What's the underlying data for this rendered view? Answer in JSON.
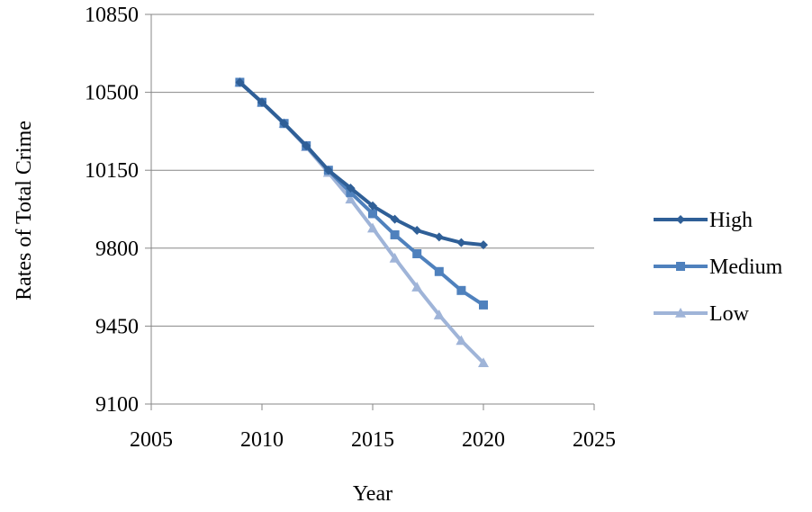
{
  "chart_data": {
    "type": "line",
    "title": "",
    "xlabel": "Year",
    "ylabel": "Rates of Total Crime",
    "xlim": [
      2005,
      2025
    ],
    "ylim": [
      9100,
      10850
    ],
    "xticks": [
      2005,
      2010,
      2015,
      2020,
      2025
    ],
    "yticks": [
      9100,
      9450,
      9800,
      10150,
      10500,
      10850
    ],
    "grid": "horizontal",
    "legend_position": "right",
    "x": [
      2009,
      2010,
      2011,
      2012,
      2013,
      2014,
      2015,
      2016,
      2017,
      2018,
      2019,
      2020
    ],
    "series": [
      {
        "name": "High",
        "marker": "diamond",
        "color": "#2f5f97",
        "values": [
          10545,
          10455,
          10360,
          10260,
          10150,
          10070,
          9990,
          9930,
          9880,
          9850,
          9825,
          9815
        ]
      },
      {
        "name": "Medium",
        "marker": "square",
        "color": "#4f81bd",
        "values": [
          10545,
          10455,
          10360,
          10260,
          10150,
          10050,
          9955,
          9860,
          9775,
          9695,
          9610,
          9545
        ]
      },
      {
        "name": "Low",
        "marker": "triangle",
        "color": "#9fb4d8",
        "values": [
          10545,
          10455,
          10360,
          10255,
          10140,
          10020,
          9890,
          9755,
          9625,
          9500,
          9385,
          9285
        ]
      }
    ]
  }
}
